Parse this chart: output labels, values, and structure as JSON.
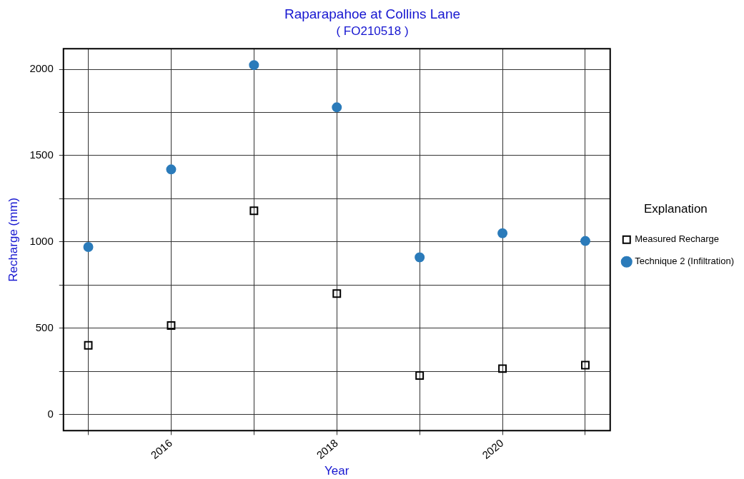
{
  "chart_data": {
    "type": "scatter",
    "title": "Raparapahoe at Collins Lane",
    "subtitle": "( FO210518 )",
    "xlabel": "Year",
    "ylabel": "Recharge (mm)",
    "legend_title": "Explanation",
    "legend": "right",
    "grid": true,
    "x": [
      2015,
      2016,
      2017,
      2018,
      2019,
      2020,
      2021
    ],
    "xlim": [
      2014.7,
      2021.3
    ],
    "xticks": [
      {
        "value": 2015,
        "label": null
      },
      2016,
      {
        "value": 2017,
        "label": null
      },
      2018,
      {
        "value": 2019,
        "label": null
      },
      2020,
      {
        "value": 2021,
        "label": null
      }
    ],
    "ylim": [
      -95,
      2120
    ],
    "yticks": [
      0,
      {
        "value": 250,
        "label": null
      },
      500,
      {
        "value": 750,
        "label": null
      },
      1000,
      {
        "value": 1250,
        "label": null
      },
      1500,
      {
        "value": 1750,
        "label": null
      },
      2000
    ],
    "series": [
      {
        "name": "Measured Recharge",
        "color": "#000000",
        "marker": "square",
        "values": [
          400,
          515,
          1180,
          700,
          225,
          265,
          285
        ]
      },
      {
        "name": "Technique 2 (Infiltration)",
        "color": "#2b7bba",
        "marker": "circle",
        "values": [
          970,
          1420,
          2025,
          1780,
          910,
          1050,
          1005
        ]
      }
    ]
  }
}
